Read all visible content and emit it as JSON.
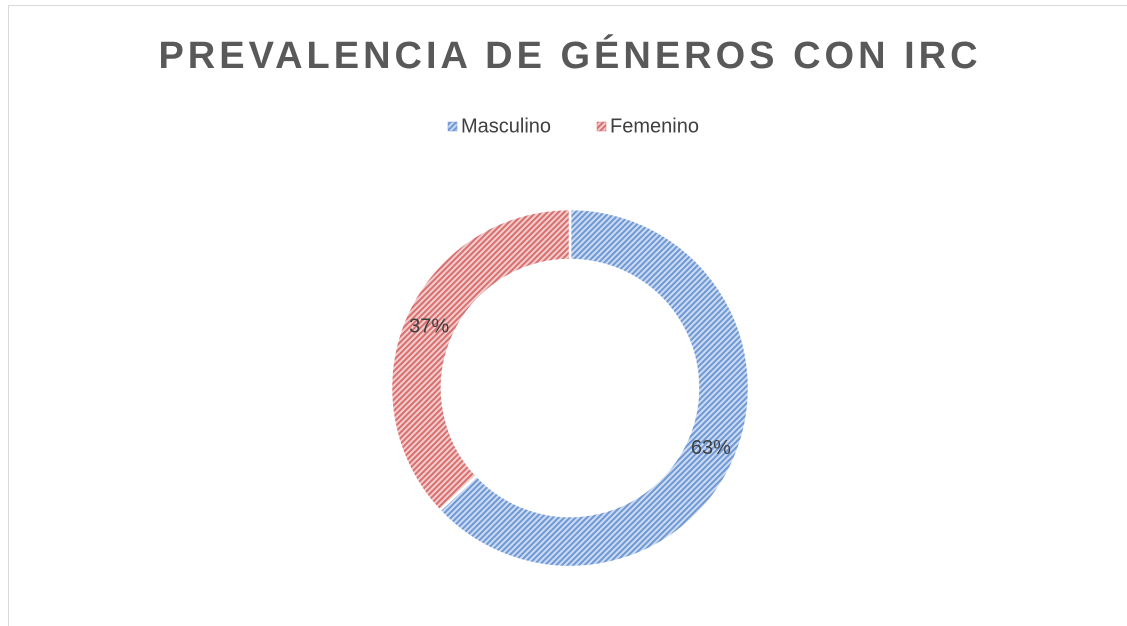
{
  "chart_data": {
    "type": "doughnut",
    "title": "PREVALENCIA DE GÉNEROS CON IRC",
    "categories": [
      "Masculino",
      "Femenino"
    ],
    "values": [
      63,
      37
    ],
    "value_labels": [
      "63%",
      "37%"
    ],
    "colors": [
      "#6f98d6",
      "#d96f6f"
    ],
    "legend": "top"
  }
}
